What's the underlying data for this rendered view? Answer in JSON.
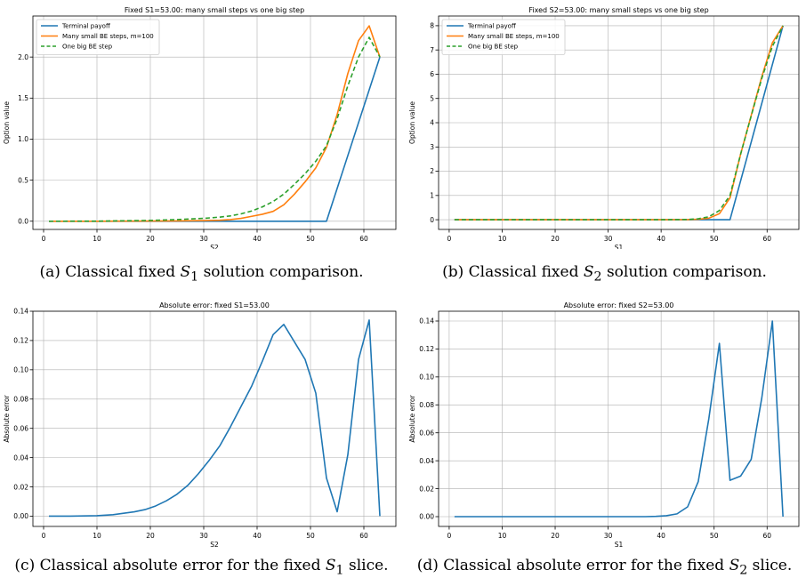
{
  "colors": {
    "blue": "#1f77b4",
    "orange": "#ff7f0e",
    "green": "#2ca02c",
    "grid": "#b0b0b0"
  },
  "captions": [
    {
      "prefix": "(a) Classical fixed ",
      "var": "S",
      "sub": "1",
      "suffix": " solution comparison."
    },
    {
      "prefix": "(b) Classical fixed ",
      "var": "S",
      "sub": "2",
      "suffix": " solution comparison."
    },
    {
      "prefix": "(c) Classical absolute error for the fixed ",
      "var": "S",
      "sub": "1",
      "suffix": " slice."
    },
    {
      "prefix": "(d) Classical absolute error for the fixed ",
      "var": "S",
      "sub": "2",
      "suffix": " slice."
    }
  ],
  "chart_data": [
    {
      "type": "line",
      "title": "Fixed S1=53.00: many small steps vs one big step",
      "xlabel": "S2",
      "ylabel": "Option value",
      "xlim": [
        -2,
        66
      ],
      "ylim": [
        -0.1,
        2.5
      ],
      "xticks": [
        0,
        10,
        20,
        30,
        40,
        50,
        60
      ],
      "yticks": [
        0.0,
        0.5,
        1.0,
        1.5,
        2.0
      ],
      "ytick_labels": [
        "0.0",
        "0.5",
        "1.0",
        "1.5",
        "2.0"
      ],
      "grid": true,
      "legend": "top-left",
      "series": [
        {
          "name": "Terminal payoff",
          "color": "#1f77b4",
          "dash": false,
          "x": [
            1,
            53,
            63
          ],
          "y": [
            0,
            0,
            2.0
          ]
        },
        {
          "name": "Many small BE steps, m=100",
          "color": "#ff7f0e",
          "dash": false,
          "x": [
            1,
            10,
            20,
            25,
            30,
            33,
            35,
            37,
            39,
            41,
            43,
            45,
            47,
            49,
            51,
            53,
            55,
            57,
            59,
            61,
            63
          ],
          "y": [
            0,
            0,
            0.002,
            0.004,
            0.008,
            0.012,
            0.02,
            0.035,
            0.06,
            0.085,
            0.12,
            0.2,
            0.33,
            0.48,
            0.65,
            0.9,
            1.3,
            1.8,
            2.2,
            2.38,
            2.0
          ]
        },
        {
          "name": "One big BE step",
          "color": "#2ca02c",
          "dash": true,
          "x": [
            1,
            10,
            20,
            25,
            30,
            33,
            35,
            37,
            39,
            41,
            43,
            45,
            47,
            49,
            51,
            53,
            55,
            57,
            59,
            61,
            63
          ],
          "y": [
            0,
            0.001,
            0.01,
            0.02,
            0.035,
            0.05,
            0.065,
            0.09,
            0.125,
            0.175,
            0.24,
            0.33,
            0.45,
            0.58,
            0.73,
            0.92,
            1.25,
            1.65,
            2.0,
            2.24,
            2.0
          ]
        }
      ]
    },
    {
      "type": "line",
      "title": "Fixed S2=53.00: many small steps vs one big step",
      "xlabel": "S1",
      "ylabel": "Option value",
      "xlim": [
        -2,
        66
      ],
      "ylim": [
        -0.4,
        8.4
      ],
      "xticks": [
        0,
        10,
        20,
        30,
        40,
        50,
        60
      ],
      "yticks": [
        0,
        1,
        2,
        3,
        4,
        5,
        6,
        7,
        8
      ],
      "ytick_labels": [
        "0",
        "1",
        "2",
        "3",
        "4",
        "5",
        "6",
        "7",
        "8"
      ],
      "grid": true,
      "legend": "top-left",
      "series": [
        {
          "name": "Terminal payoff",
          "color": "#1f77b4",
          "dash": false,
          "x": [
            1,
            53,
            63
          ],
          "y": [
            0,
            0,
            8.0
          ]
        },
        {
          "name": "Many small BE steps, m=100",
          "color": "#ff7f0e",
          "dash": false,
          "x": [
            1,
            40,
            45,
            47,
            49,
            51,
            53,
            55,
            57,
            59,
            61,
            63
          ],
          "y": [
            0,
            0,
            0.005,
            0.02,
            0.06,
            0.25,
            0.9,
            2.7,
            4.3,
            5.9,
            7.3,
            8.0
          ]
        },
        {
          "name": "One big BE step",
          "color": "#2ca02c",
          "dash": true,
          "x": [
            1,
            40,
            45,
            47,
            49,
            51,
            53,
            55,
            57,
            59,
            61,
            63
          ],
          "y": [
            0,
            0,
            0.01,
            0.04,
            0.12,
            0.38,
            1.0,
            2.7,
            4.28,
            5.83,
            7.15,
            8.0
          ]
        }
      ]
    },
    {
      "type": "line",
      "title": "Absolute error: fixed S1=53.00",
      "xlabel": "S2",
      "ylabel": "Absolute error",
      "xlim": [
        -2,
        66
      ],
      "ylim": [
        -0.007,
        0.14
      ],
      "xticks": [
        0,
        10,
        20,
        30,
        40,
        50,
        60
      ],
      "yticks": [
        0.0,
        0.02,
        0.04,
        0.06,
        0.08,
        0.1,
        0.12,
        0.14
      ],
      "ytick_labels": [
        "0.00",
        "0.02",
        "0.04",
        "0.06",
        "0.08",
        "0.10",
        "0.12",
        "0.14"
      ],
      "grid": true,
      "legend": "none",
      "series": [
        {
          "name": "",
          "color": "#1f77b4",
          "dash": false,
          "x": [
            1,
            5,
            10,
            13,
            15,
            17,
            19,
            21,
            23,
            25,
            27,
            29,
            31,
            33,
            35,
            37,
            39,
            41,
            43,
            45,
            47,
            49,
            51,
            53,
            55,
            57,
            59,
            61,
            63
          ],
          "y": [
            0,
            0,
            0.0003,
            0.001,
            0.002,
            0.003,
            0.0045,
            0.007,
            0.0105,
            0.015,
            0.021,
            0.029,
            0.038,
            0.048,
            0.061,
            0.075,
            0.089,
            0.106,
            0.124,
            0.131,
            0.119,
            0.107,
            0.084,
            0.026,
            0.003,
            0.042,
            0.107,
            0.134,
            0
          ]
        }
      ]
    },
    {
      "type": "line",
      "title": "Absolute error: fixed S2=53.00",
      "xlabel": "S1",
      "ylabel": "Absolute error",
      "xlim": [
        -2,
        66
      ],
      "ylim": [
        -0.007,
        0.147
      ],
      "xticks": [
        0,
        10,
        20,
        30,
        40,
        50,
        60
      ],
      "yticks": [
        0.0,
        0.02,
        0.04,
        0.06,
        0.08,
        0.1,
        0.12,
        0.14
      ],
      "ytick_labels": [
        "0.00",
        "0.02",
        "0.04",
        "0.06",
        "0.08",
        "0.10",
        "0.12",
        "0.14"
      ],
      "grid": true,
      "legend": "none",
      "series": [
        {
          "name": "",
          "color": "#1f77b4",
          "dash": false,
          "x": [
            1,
            10,
            20,
            30,
            37,
            39,
            41,
            43,
            45,
            47,
            49,
            51,
            53,
            55,
            57,
            59,
            61,
            63
          ],
          "y": [
            0,
            0,
            0,
            0,
            0,
            0.0002,
            0.0007,
            0.002,
            0.007,
            0.025,
            0.07,
            0.124,
            0.026,
            0.029,
            0.041,
            0.085,
            0.14,
            0
          ]
        }
      ]
    }
  ]
}
